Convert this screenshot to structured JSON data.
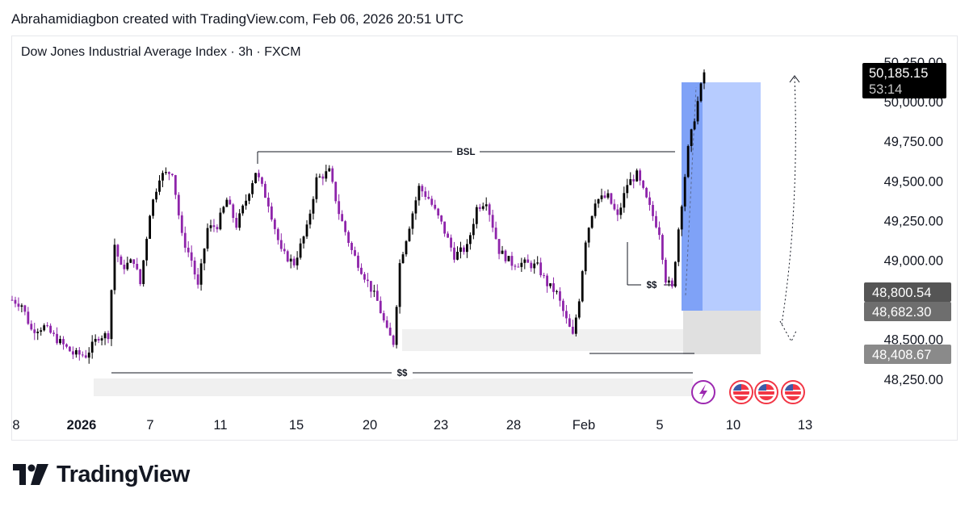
{
  "header": {
    "attribution": "Abrahamidiagbon created with TradingView.com, Feb 06, 2026 20:51 UTC"
  },
  "chart": {
    "symbol_title": "Dow Jones Industrial Average Index · 3h · FXCM",
    "brand": "TradingView",
    "colors": {
      "up_candle": "#000000",
      "down_candle": "#8e24aa",
      "zone_gray": "#e0e0e0",
      "zone_light": "#f0f0f0",
      "long_profit_zone": "#b7ccff",
      "long_current": "#7fa2f7",
      "price_tag_dark": "#000000",
      "price_tag_gray": "#555555",
      "price_tag_mid": "#6e6e6e",
      "price_tag_light": "#8a8a8a",
      "event_purple": "#9c27b0",
      "event_red": "#f23645"
    },
    "annotations": {
      "bsl_label": "BSL",
      "ss_label_upper": "$$",
      "ss_label_lower": "$$"
    },
    "price_tags": {
      "last_price": "50,185.15",
      "countdown": "53:14",
      "tag_a": "48,800.54",
      "tag_b": "48,682.30",
      "tag_c": "48,408.67"
    },
    "event_icons": [
      "lightning-icon",
      "us-flag-icon",
      "us-flag-icon",
      "us-flag-icon"
    ]
  },
  "chart_data": {
    "type": "candlestick",
    "title": "Dow Jones Industrial Average Index · 3h · FXCM",
    "y_ticks": [
      "48,250.00",
      "48,500.00",
      "48,750.00",
      "49,000.00",
      "49,250.00",
      "49,500.00",
      "49,750.00",
      "50,000.00",
      "50,250.00"
    ],
    "y_tick_values": [
      48250,
      48500,
      48750,
      49000,
      49250,
      49500,
      49750,
      50000,
      50250
    ],
    "x_ticks": [
      "8",
      "2026",
      "7",
      "11",
      "15",
      "20",
      "23",
      "28",
      "Feb",
      "5",
      "10",
      "13"
    ],
    "ylim": [
      48250,
      50250
    ],
    "key_levels": {
      "bsl": 49680,
      "upper_ss": 48840,
      "lower_ss": 48300,
      "long_entry": 48682.3,
      "long_target": 50120,
      "last_price": 50185.15
    },
    "ohlc_anchors": [
      [
        0,
        48750
      ],
      [
        3,
        48720
      ],
      [
        6,
        48560
      ],
      [
        10,
        48580
      ],
      [
        14,
        48500
      ],
      [
        19,
        48410
      ],
      [
        23,
        48400
      ],
      [
        27,
        48520
      ],
      [
        30,
        48530
      ],
      [
        32,
        49100
      ],
      [
        34,
        48950
      ],
      [
        38,
        49000
      ],
      [
        40,
        48850
      ],
      [
        43,
        49300
      ],
      [
        46,
        49530
      ],
      [
        50,
        49560
      ],
      [
        53,
        49150
      ],
      [
        56,
        49000
      ],
      [
        58,
        48830
      ],
      [
        61,
        49200
      ],
      [
        64,
        49220
      ],
      [
        67,
        49380
      ],
      [
        70,
        49220
      ],
      [
        73,
        49380
      ],
      [
        76,
        49560
      ],
      [
        80,
        49360
      ],
      [
        84,
        49050
      ],
      [
        88,
        48980
      ],
      [
        92,
        49200
      ],
      [
        95,
        49510
      ],
      [
        99,
        49560
      ],
      [
        102,
        49300
      ],
      [
        106,
        49060
      ],
      [
        110,
        48900
      ],
      [
        114,
        48740
      ],
      [
        117,
        48550
      ],
      [
        119,
        48480
      ],
      [
        121,
        48980
      ],
      [
        124,
        49220
      ],
      [
        127,
        49460
      ],
      [
        130,
        49390
      ],
      [
        134,
        49230
      ],
      [
        138,
        49030
      ],
      [
        142,
        49080
      ],
      [
        145,
        49330
      ],
      [
        148,
        49380
      ],
      [
        152,
        49060
      ],
      [
        156,
        48980
      ],
      [
        160,
        48980
      ],
      [
        164,
        48960
      ],
      [
        167,
        48850
      ],
      [
        170,
        48790
      ],
      [
        173,
        48620
      ],
      [
        175,
        48520
      ],
      [
        177,
        48760
      ],
      [
        179,
        49130
      ],
      [
        182,
        49380
      ],
      [
        186,
        49400
      ],
      [
        189,
        49270
      ],
      [
        192,
        49480
      ],
      [
        195,
        49540
      ],
      [
        198,
        49380
      ],
      [
        202,
        49180
      ],
      [
        204,
        48880
      ],
      [
        206,
        48820
      ],
      [
        208,
        49200
      ],
      [
        211,
        49700
      ],
      [
        214,
        50000
      ],
      [
        216,
        50185.15
      ]
    ]
  }
}
